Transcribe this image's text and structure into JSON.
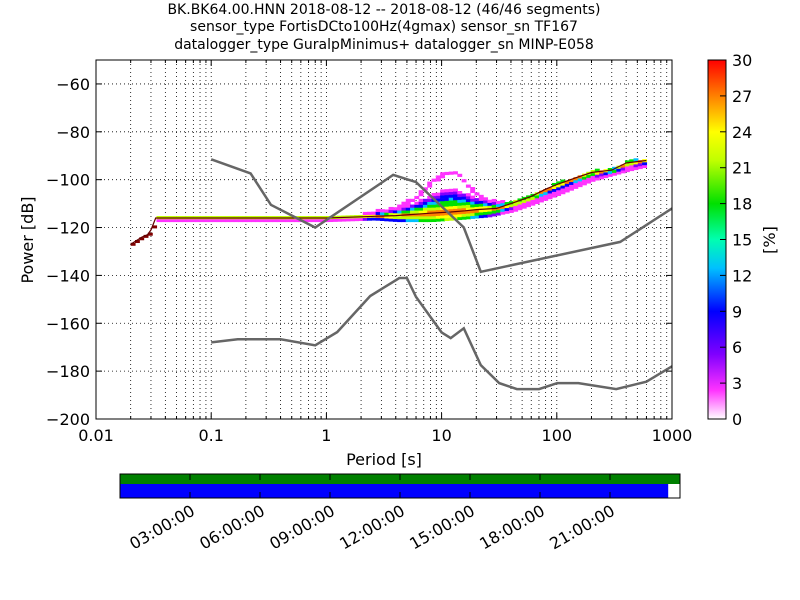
{
  "title": {
    "line1": "BK.BK64.00.HNN   2018-08-12 -- 2018-08-12  (46/46 segments)",
    "line2": "sensor_type FortisDCto100Hz(4gmax) sensor_sn TF167",
    "line3": "datalogger_type GuralpMinimus+ datalogger_sn MINP-E058"
  },
  "chart_data": {
    "type": "heatmap",
    "xlabel": "Period [s]",
    "ylabel": "Power [dB]",
    "x_scale": "log",
    "xlim": [
      0.01,
      1000
    ],
    "ylim": [
      -200,
      -50
    ],
    "x_tick_labels": [
      {
        "value": 0.01,
        "label": "0.01"
      },
      {
        "value": 0.1,
        "label": "0.1"
      },
      {
        "value": 1,
        "label": "1"
      },
      {
        "value": 10,
        "label": "10"
      },
      {
        "value": 100,
        "label": "100"
      },
      {
        "value": 1000,
        "label": "1000"
      }
    ],
    "y_ticks": [
      -200,
      -180,
      -160,
      -140,
      -120,
      -100,
      -80,
      -60
    ],
    "y_tick_labels": [
      "−200",
      "−180",
      "−160",
      "−140",
      "−120",
      "−100",
      "−80",
      "−60"
    ],
    "grid": "dotted vertical at log minor ticks",
    "colorbar": {
      "label": "[%]",
      "range": [
        0,
        30
      ],
      "ticks": [
        "0",
        "3",
        "6",
        "9",
        "12",
        "15",
        "18",
        "21",
        "24",
        "27",
        "30"
      ]
    },
    "noise_models": [
      {
        "periods": [
          0.1,
          0.22,
          0.33,
          0.8,
          3.8,
          6.0,
          15.6,
          21.9,
          355,
          1000
        ],
        "power": [
          -91.5,
          -97.4,
          -110.5,
          -120.0,
          -98.0,
          -101.0,
          -120.0,
          -138.5,
          -126.0,
          -112.0
        ]
      },
      {
        "periods": [
          0.1,
          0.17,
          0.4,
          0.8,
          1.24,
          2.4,
          4.3,
          5.0,
          6.0,
          10.0,
          12.0,
          15.6,
          21.9,
          31.6,
          45,
          70,
          101,
          154,
          328,
          600,
          1000
        ],
        "power": [
          -168.0,
          -166.7,
          -166.7,
          -169.2,
          -163.7,
          -148.6,
          -141.1,
          -141.1,
          -149.0,
          -163.8,
          -166.2,
          -162.1,
          -177.5,
          -185.0,
          -187.5,
          -187.5,
          -185.0,
          -185.0,
          -187.5,
          -184.4,
          -178.0
        ]
      }
    ],
    "psd_mode": {
      "periods": [
        0.02,
        0.025,
        0.028,
        0.03,
        0.033,
        0.05,
        0.1,
        0.5,
        1,
        2,
        4,
        8,
        12,
        16,
        20,
        30,
        40,
        60,
        80,
        100,
        150,
        200,
        300,
        400,
        600
      ],
      "power": [
        -127,
        -124,
        -123,
        -121,
        -116,
        -116,
        -116,
        -116,
        -116,
        -115.5,
        -115,
        -114,
        -113.5,
        -113,
        -112.5,
        -112,
        -110,
        -107,
        -104,
        -102,
        -99,
        -97,
        -96,
        -93,
        -92
      ]
    },
    "psd_spread_upper": {
      "periods": [
        2,
        4,
        6,
        8,
        10,
        12,
        14,
        18,
        25,
        35,
        50,
        70,
        100,
        200,
        600
      ],
      "power": [
        -114,
        -111,
        -106,
        -100,
        -97,
        -96,
        -98,
        -104,
        -108,
        -109,
        -108,
        -106,
        -103,
        -97,
        -91
      ]
    },
    "psd_spread_lower": {
      "periods": [
        2,
        4,
        8,
        15,
        25,
        40,
        60,
        100,
        200,
        400,
        600
      ],
      "power": [
        -116,
        -117,
        -117,
        -116,
        -115,
        -113,
        -110,
        -106,
        -100,
        -96,
        -94
      ]
    },
    "timeline": {
      "tick_labels": [
        "03:00:00",
        "06:00:00",
        "09:00:00",
        "12:00:00",
        "15:00:00",
        "18:00:00",
        "21:00:00"
      ],
      "top_bar_color": "#008000",
      "data_bar_color": "#0000ff",
      "data_coverage": 0.979
    }
  }
}
